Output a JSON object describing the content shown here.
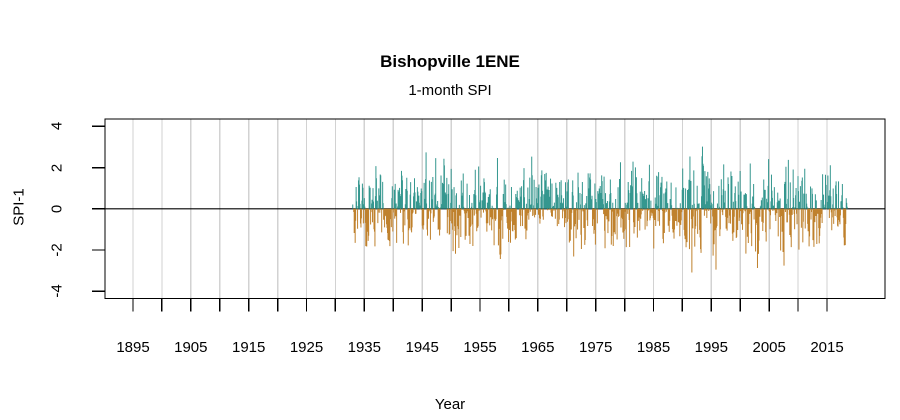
{
  "chart_data": {
    "type": "bar",
    "title": "Bishopville 1ENE",
    "subtitle": "1-month SPI",
    "xlabel": "Year",
    "ylabel": "SPI-1",
    "x_tick_labels": [
      "1895",
      "1905",
      "1915",
      "1925",
      "1935",
      "1945",
      "1955",
      "1965",
      "1975",
      "1985",
      "1995",
      "2005",
      "2015"
    ],
    "x_tick_years": [
      1895,
      1905,
      1915,
      1925,
      1935,
      1945,
      1955,
      1965,
      1975,
      1985,
      1995,
      2005,
      2015
    ],
    "x_minor_ticks": {
      "start": 1895,
      "end": 2015,
      "step": 5
    },
    "y_tick_labels": [
      "-4",
      "-2",
      "0",
      "2",
      "4"
    ],
    "y_ticks": [
      -4,
      -2,
      0,
      2,
      4
    ],
    "xlim": [
      1890,
      2025
    ],
    "ylim": [
      -4.4,
      4.4
    ],
    "grid": {
      "show": true,
      "orientation": "vertical",
      "color": "#d2d2d2",
      "start": 1895,
      "end": 2015,
      "step": 5
    },
    "zero_line": {
      "value": 0,
      "color": "#000000"
    },
    "series": {
      "name": "1-month SPI",
      "frequency": "monthly",
      "start_year": 1933,
      "end_year": 2018.5,
      "n_points": 1026,
      "mean": 0,
      "sd": 1,
      "approx_max": 3.0,
      "approx_max_year": 1991,
      "approx_min": -3.4,
      "positive_color": "#35978F",
      "negative_color": "#BF812D"
    }
  }
}
